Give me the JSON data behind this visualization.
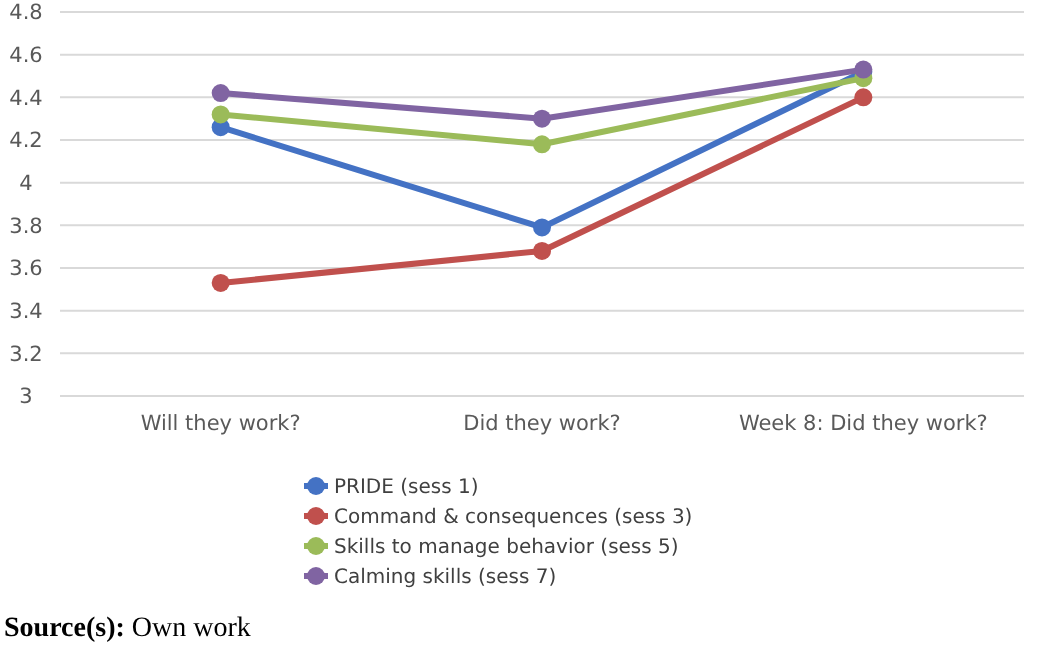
{
  "chart_data": {
    "type": "line",
    "categories": [
      "Will they work?",
      "Did they work?",
      "Week 8: Did they work?"
    ],
    "series": [
      {
        "name": "PRIDE (sess 1)",
        "color": "#4472c4",
        "values": [
          4.26,
          3.79,
          4.52
        ]
      },
      {
        "name": "Command & consequences (sess 3)",
        "color": "#c0504d",
        "values": [
          3.53,
          3.68,
          4.4
        ]
      },
      {
        "name": "Skills to manage behavior (sess 5)",
        "color": "#9bbb59",
        "values": [
          4.32,
          4.18,
          4.49
        ]
      },
      {
        "name": "Calming skills (sess 7)",
        "color": "#8064a2",
        "values": [
          4.42,
          4.3,
          4.53
        ]
      }
    ],
    "ylim": [
      3,
      4.8
    ],
    "yticks": [
      3,
      3.2,
      3.4,
      3.6,
      3.8,
      4,
      4.2,
      4.4,
      4.6,
      4.8
    ],
    "grid": "y",
    "legend": "bottom",
    "marker": "circle",
    "line_style": "solid",
    "annotations": [
      "Source(s): Own work"
    ]
  }
}
